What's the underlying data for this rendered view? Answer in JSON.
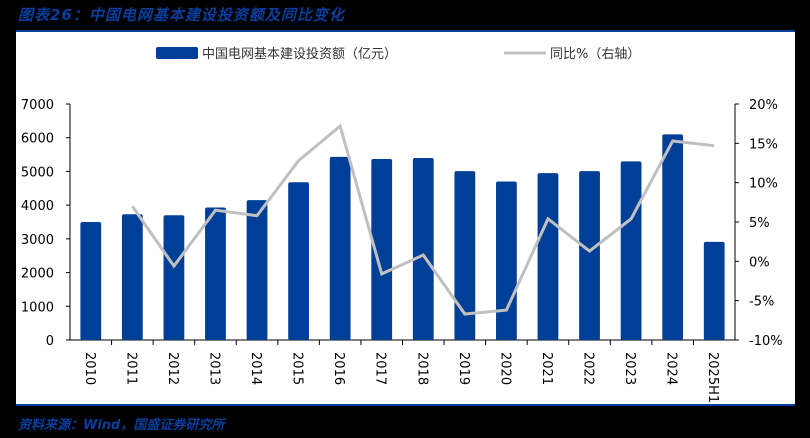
{
  "header": {
    "title": "图表26：中国电网基本建设投资额及同比变化"
  },
  "footer": {
    "source": "资料来源：Wind，国盛证券研究所"
  },
  "colors": {
    "bar": "#003f98",
    "line": "#c0c0c0",
    "accent": "#0a3d9c",
    "axis": "#000000"
  },
  "chart_data": {
    "type": "bar+line",
    "title": "中国电网基本建设投资额及同比变化",
    "categories": [
      "2010",
      "2011",
      "2012",
      "2013",
      "2014",
      "2015",
      "2016",
      "2017",
      "2018",
      "2019",
      "2020",
      "2021",
      "2022",
      "2023",
      "2024",
      "2025H1"
    ],
    "series": [
      {
        "name": "中国电网基本建设投资额（亿元）",
        "type": "bar",
        "axis": "left",
        "values": [
          3500,
          3730,
          3700,
          3930,
          4150,
          4680,
          5430,
          5370,
          5400,
          5010,
          4700,
          4950,
          5010,
          5300,
          6100,
          2910
        ]
      },
      {
        "name": "同比%（右轴）",
        "type": "line",
        "axis": "right",
        "values": [
          null,
          7.0,
          -0.6,
          6.5,
          5.8,
          12.8,
          17.2,
          -1.6,
          0.8,
          -6.7,
          -6.2,
          5.4,
          1.3,
          5.4,
          15.3,
          14.7
        ]
      }
    ],
    "left_axis": {
      "ylim": [
        0,
        7000
      ],
      "ticks": [
        "0",
        "1000",
        "2000",
        "3000",
        "4000",
        "5000",
        "6000",
        "7000"
      ]
    },
    "right_axis": {
      "ylim": [
        -10,
        20
      ],
      "ticks": [
        "-10%",
        "-5%",
        "0%",
        "5%",
        "10%",
        "15%",
        "20%"
      ]
    },
    "legend": {
      "position": "top",
      "entries": [
        "中国电网基本建设投资额（亿元）",
        "同比%（右轴）"
      ]
    },
    "grid": false,
    "xlabel": "",
    "ylabel": ""
  }
}
